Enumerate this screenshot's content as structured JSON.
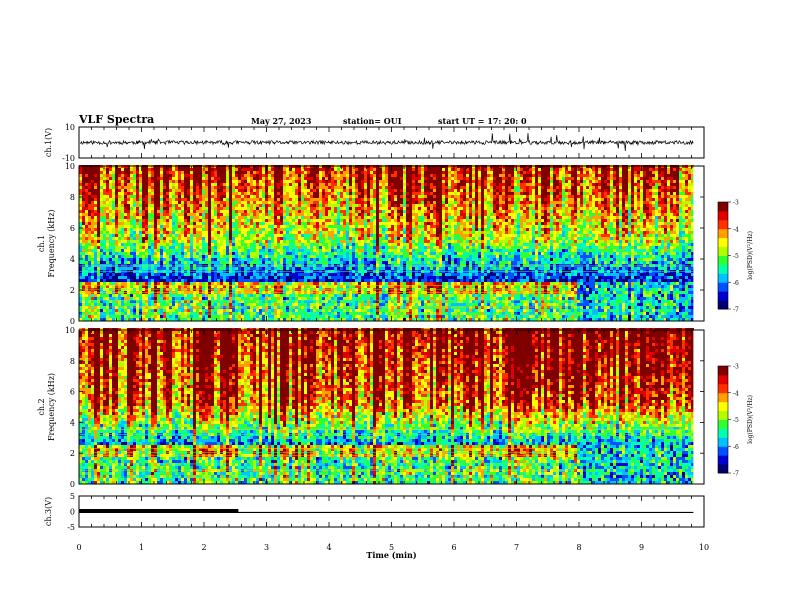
{
  "header": {
    "title": "VLF Spectra",
    "date": "May 27, 2023",
    "station": "station= OUI",
    "start": "start UT = 17: 20: 0"
  },
  "colors": {
    "colormap": [
      "#000070",
      "#0000d0",
      "#0050ff",
      "#00c0ff",
      "#00ffb0",
      "#30ff30",
      "#b0ff00",
      "#ffff00",
      "#ffa000",
      "#ff3000",
      "#e00000",
      "#800000"
    ],
    "trace": "#000000"
  },
  "chart_data": [
    {
      "type": "line",
      "ylabel": "ch.1(V)",
      "ylim": [
        -10,
        10
      ],
      "yticks": [
        "10",
        "-10"
      ],
      "xlim": [
        0,
        10
      ],
      "grid": false,
      "series": [
        {
          "description": "noisy waveform around 0 V",
          "values": [
            0,
            0,
            0
          ]
        }
      ]
    },
    {
      "type": "heatmap",
      "ylabel": "ch.1\nFrequency (kHz)",
      "ylim": [
        0,
        10
      ],
      "yticks": [
        "0",
        "2",
        "4",
        "6",
        "8",
        "10"
      ],
      "xlim": [
        0,
        10
      ],
      "colorbar": {
        "label": "log(PSD)(V²/Hz)",
        "range": [
          -7,
          -3
        ],
        "ticks": [
          "-3",
          "-4",
          "-5",
          "-6",
          "-7"
        ]
      },
      "data_end_min": 9.83,
      "band_shift_min": 7.95
    },
    {
      "type": "heatmap",
      "ylabel": "ch.2\nFrequency (kHz)",
      "ylim": [
        0,
        10
      ],
      "yticks": [
        "0",
        "2",
        "4",
        "6",
        "8",
        "10"
      ],
      "xlim": [
        0,
        10
      ],
      "colorbar": {
        "label": "log(PSD)(V²/Hz)",
        "range": [
          -7,
          -3
        ],
        "ticks": [
          "-3",
          "-4",
          "-5",
          "-6",
          "-7"
        ]
      },
      "data_end_min": 9.83,
      "band_shift_min": 7.95
    },
    {
      "type": "line",
      "ylabel": "ch.3(V)",
      "ylim": [
        -5,
        5
      ],
      "yticks": [
        "5",
        "0",
        "-5"
      ],
      "xlim": [
        0,
        10
      ],
      "xticks": [
        "0",
        "1",
        "2",
        "3",
        "4",
        "5",
        "6",
        "7",
        "8",
        "9",
        "10"
      ],
      "xlabel": "Time (min)",
      "series": [
        {
          "description": "upper trace",
          "x": [
            0,
            2.55
          ],
          "values": [
            0,
            0
          ]
        },
        {
          "description": "lower trace",
          "x": [
            0,
            9.83
          ],
          "values": [
            -0.3,
            -0.3
          ]
        }
      ]
    }
  ]
}
